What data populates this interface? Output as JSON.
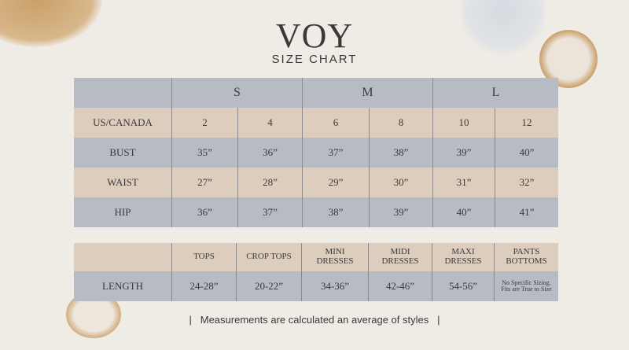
{
  "brand": "VOY",
  "subtitle": "SIZE CHART",
  "colors": {
    "row_blue": "#b7bbc4",
    "row_beige": "#dccdbd",
    "background": "#efebe5"
  },
  "size_table": {
    "sizes": [
      "S",
      "M",
      "L"
    ],
    "rows": [
      {
        "label": "US/CANADA",
        "values": [
          "2",
          "4",
          "6",
          "8",
          "10",
          "12"
        ]
      },
      {
        "label": "BUST",
        "values": [
          "35”",
          "36”",
          "37”",
          "38”",
          "39”",
          "40”"
        ]
      },
      {
        "label": "WAIST",
        "values": [
          "27”",
          "28”",
          "29”",
          "30”",
          "31”",
          "32”"
        ]
      },
      {
        "label": "HIP",
        "values": [
          "36”",
          "37”",
          "38”",
          "39”",
          "40”",
          "41”"
        ]
      }
    ]
  },
  "length_table": {
    "headers": [
      "TOPS",
      "CROP TOPS",
      "MINI DRESSES",
      "MIDI DRESSES",
      "MAXI DRESSES",
      "PANTS BOTTOMS"
    ],
    "label": "LENGTH",
    "values": [
      "24-28”",
      "20-22”",
      "34-36”",
      "42-46”",
      "54-56”",
      "No Specific Sizing. Fits are True to Size"
    ]
  },
  "footer": "|   Measurements are calculated an average of styles   |"
}
